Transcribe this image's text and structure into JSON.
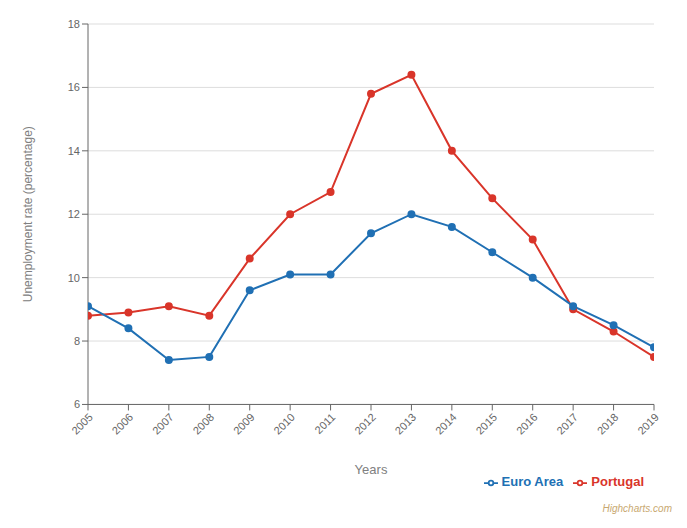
{
  "chart_data": {
    "type": "line",
    "x": [
      2005,
      2006,
      2007,
      2008,
      2009,
      2010,
      2011,
      2012,
      2013,
      2014,
      2015,
      2016,
      2017,
      2018,
      2019
    ],
    "xlim": [
      2005,
      2019
    ],
    "xticks": [
      2005,
      2006,
      2007,
      2008,
      2009,
      2010,
      2011,
      2012,
      2013,
      2014,
      2015,
      2016,
      2017,
      2018,
      2019
    ],
    "x_label": "Years",
    "y_label": "Unemployment rate (percentage)",
    "ylim": [
      6,
      18
    ],
    "yticks": [
      6,
      8,
      10,
      12,
      14,
      16,
      18
    ],
    "series": [
      {
        "name": "Portugal",
        "color": "#d9352a",
        "values": [
          8.8,
          8.9,
          9.1,
          8.8,
          10.6,
          12.0,
          12.7,
          15.8,
          16.4,
          14.0,
          12.5,
          11.2,
          9.0,
          8.3,
          7.5
        ]
      },
      {
        "name": "Euro Area",
        "color": "#2070b4",
        "values": [
          9.1,
          8.4,
          7.4,
          7.5,
          9.6,
          10.1,
          10.1,
          11.4,
          12.0,
          11.6,
          10.8,
          10.0,
          9.1,
          8.5,
          7.8
        ]
      }
    ],
    "marker": "circle",
    "grid": "y",
    "legend": "bottom right",
    "annotations": [
      "Highcharts.com"
    ]
  }
}
